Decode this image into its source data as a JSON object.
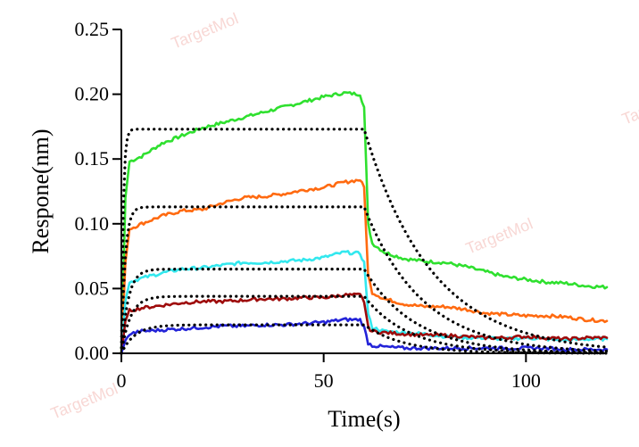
{
  "chart_data": {
    "type": "line",
    "xlabel": "Time(s)",
    "ylabel": "Respone(nm)",
    "xlim": [
      0,
      120
    ],
    "ylim": [
      0,
      0.25
    ],
    "x_ticks": [
      0,
      50,
      100
    ],
    "x_tick_labels": [
      "0",
      "50",
      "100"
    ],
    "y_ticks": [
      0,
      0.05,
      0.1,
      0.15,
      0.2,
      0.25
    ],
    "y_tick_labels": [
      "0.00",
      "0.05",
      "0.10",
      "0.15",
      "0.20",
      "0.25"
    ],
    "grid": false,
    "legend": "none",
    "watermark": "TargetMol",
    "series": [
      {
        "color": "#2fe02f",
        "style": "solid",
        "points": [
          [
            0,
            0
          ],
          [
            1,
            0.12
          ],
          [
            2,
            0.148
          ],
          [
            5,
            0.152
          ],
          [
            10,
            0.162
          ],
          [
            15,
            0.168
          ],
          [
            20,
            0.174
          ],
          [
            25,
            0.178
          ],
          [
            30,
            0.182
          ],
          [
            35,
            0.186
          ],
          [
            40,
            0.19
          ],
          [
            45,
            0.194
          ],
          [
            50,
            0.198
          ],
          [
            55,
            0.201
          ],
          [
            59,
            0.2
          ],
          [
            60,
            0.19
          ],
          [
            61,
            0.1
          ],
          [
            62,
            0.085
          ],
          [
            65,
            0.078
          ],
          [
            70,
            0.073
          ],
          [
            75,
            0.071
          ],
          [
            80,
            0.07
          ],
          [
            85,
            0.067
          ],
          [
            90,
            0.063
          ],
          [
            95,
            0.059
          ],
          [
            100,
            0.057
          ],
          [
            105,
            0.055
          ],
          [
            110,
            0.054
          ],
          [
            115,
            0.052
          ],
          [
            120,
            0.051
          ]
        ]
      },
      {
        "color": "#ff6a10",
        "style": "solid",
        "points": [
          [
            0,
            0
          ],
          [
            1,
            0.07
          ],
          [
            2,
            0.096
          ],
          [
            5,
            0.1
          ],
          [
            10,
            0.106
          ],
          [
            15,
            0.11
          ],
          [
            20,
            0.111
          ],
          [
            25,
            0.116
          ],
          [
            30,
            0.12
          ],
          [
            35,
            0.121
          ],
          [
            40,
            0.123
          ],
          [
            45,
            0.126
          ],
          [
            50,
            0.128
          ],
          [
            55,
            0.132
          ],
          [
            59,
            0.134
          ],
          [
            60,
            0.128
          ],
          [
            61,
            0.06
          ],
          [
            62,
            0.047
          ],
          [
            65,
            0.042
          ],
          [
            70,
            0.038
          ],
          [
            75,
            0.036
          ],
          [
            80,
            0.036
          ],
          [
            85,
            0.034
          ],
          [
            90,
            0.031
          ],
          [
            95,
            0.03
          ],
          [
            100,
            0.029
          ],
          [
            105,
            0.029
          ],
          [
            110,
            0.028
          ],
          [
            115,
            0.026
          ],
          [
            120,
            0.025
          ]
        ]
      },
      {
        "color": "#33e8ee",
        "style": "solid",
        "points": [
          [
            0,
            0
          ],
          [
            1,
            0.04
          ],
          [
            2,
            0.055
          ],
          [
            5,
            0.058
          ],
          [
            10,
            0.062
          ],
          [
            15,
            0.065
          ],
          [
            20,
            0.066
          ],
          [
            25,
            0.068
          ],
          [
            30,
            0.07
          ],
          [
            35,
            0.07
          ],
          [
            40,
            0.071
          ],
          [
            45,
            0.072
          ],
          [
            50,
            0.074
          ],
          [
            55,
            0.078
          ],
          [
            59,
            0.077
          ],
          [
            60,
            0.07
          ],
          [
            61,
            0.03
          ],
          [
            62,
            0.02
          ],
          [
            65,
            0.017
          ],
          [
            70,
            0.016
          ],
          [
            75,
            0.015
          ],
          [
            80,
            0.013
          ],
          [
            85,
            0.012
          ],
          [
            90,
            0.012
          ],
          [
            95,
            0.011
          ],
          [
            100,
            0.012
          ],
          [
            105,
            0.011
          ],
          [
            110,
            0.01
          ],
          [
            115,
            0.011
          ],
          [
            120,
            0.011
          ]
        ]
      },
      {
        "color": "#9e0b0b",
        "style": "solid",
        "points": [
          [
            0,
            0
          ],
          [
            1,
            0.025
          ],
          [
            2,
            0.033
          ],
          [
            5,
            0.035
          ],
          [
            10,
            0.037
          ],
          [
            15,
            0.039
          ],
          [
            20,
            0.04
          ],
          [
            25,
            0.04
          ],
          [
            30,
            0.041
          ],
          [
            35,
            0.042
          ],
          [
            40,
            0.042
          ],
          [
            45,
            0.043
          ],
          [
            50,
            0.043
          ],
          [
            55,
            0.045
          ],
          [
            59,
            0.045
          ],
          [
            60,
            0.04
          ],
          [
            61,
            0.02
          ],
          [
            62,
            0.017
          ],
          [
            65,
            0.016
          ],
          [
            70,
            0.015
          ],
          [
            75,
            0.014
          ],
          [
            80,
            0.014
          ],
          [
            85,
            0.013
          ],
          [
            90,
            0.012
          ],
          [
            95,
            0.012
          ],
          [
            100,
            0.013
          ],
          [
            105,
            0.012
          ],
          [
            110,
            0.011
          ],
          [
            115,
            0.012
          ],
          [
            120,
            0.012
          ]
        ]
      },
      {
        "color": "#2323d8",
        "style": "solid",
        "points": [
          [
            0,
            0
          ],
          [
            1,
            0.01
          ],
          [
            2,
            0.015
          ],
          [
            5,
            0.017
          ],
          [
            10,
            0.018
          ],
          [
            15,
            0.019
          ],
          [
            20,
            0.02
          ],
          [
            25,
            0.021
          ],
          [
            30,
            0.021
          ],
          [
            35,
            0.022
          ],
          [
            40,
            0.022
          ],
          [
            45,
            0.023
          ],
          [
            50,
            0.024
          ],
          [
            55,
            0.026
          ],
          [
            59,
            0.026
          ],
          [
            60,
            0.02
          ],
          [
            61,
            0.008
          ],
          [
            62,
            0.006
          ],
          [
            65,
            0.005
          ],
          [
            70,
            0.004
          ],
          [
            75,
            0.004
          ],
          [
            80,
            0.004
          ],
          [
            85,
            0.004
          ],
          [
            90,
            0.004
          ],
          [
            95,
            0.004
          ],
          [
            100,
            0.004
          ],
          [
            105,
            0.004
          ],
          [
            110,
            0.003
          ],
          [
            115,
            0.003
          ],
          [
            120,
            0.003
          ]
        ]
      },
      {
        "color": "#000000",
        "style": "dotted",
        "rmax": 0.173,
        "t_on": 60,
        "kobs": 2.2,
        "koff": 0.06
      },
      {
        "color": "#000000",
        "style": "dotted",
        "rmax": 0.113,
        "t_on": 60,
        "kobs": 1.1,
        "koff": 0.07
      },
      {
        "color": "#000000",
        "style": "dotted",
        "rmax": 0.065,
        "t_on": 60,
        "kobs": 0.6,
        "koff": 0.08
      },
      {
        "color": "#000000",
        "style": "dotted",
        "rmax": 0.044,
        "t_on": 60,
        "kobs": 0.45,
        "koff": 0.09
      },
      {
        "color": "#000000",
        "style": "dotted",
        "rmax": 0.022,
        "t_on": 60,
        "kobs": 0.3,
        "koff": 0.1
      }
    ]
  }
}
